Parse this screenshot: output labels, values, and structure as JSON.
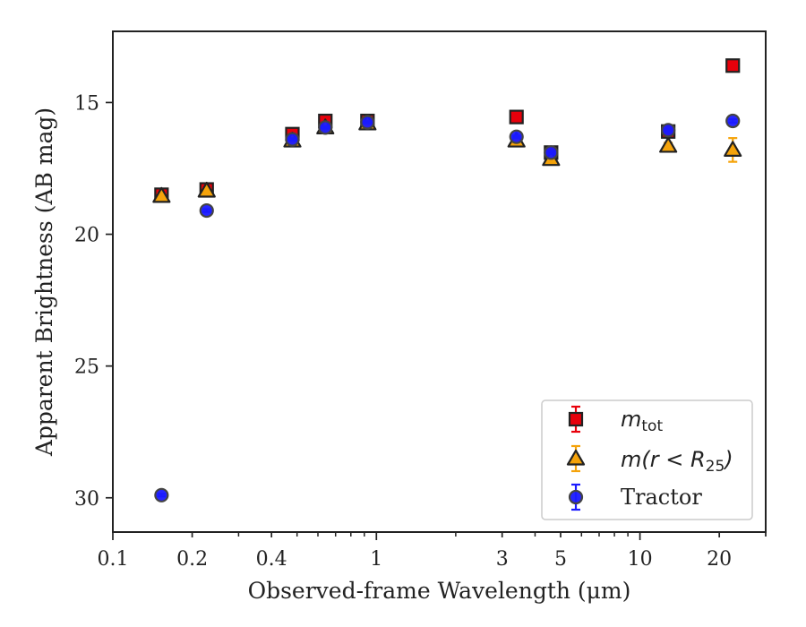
{
  "chart_data": {
    "type": "scatter",
    "xlabel": "Observed-frame Wavelength (μm)",
    "ylabel": "Apparent Brightness (AB mag)",
    "xscale": "log",
    "xlim": [
      0.1,
      30
    ],
    "ylim": [
      31.3,
      12.3
    ],
    "y_inverted": true,
    "x_ticks": [
      {
        "value": 0.1,
        "label": "0.1"
      },
      {
        "value": 0.2,
        "label": "0.2"
      },
      {
        "value": 0.4,
        "label": "0.4"
      },
      {
        "value": 1,
        "label": "1"
      },
      {
        "value": 3,
        "label": "3"
      },
      {
        "value": 5,
        "label": "5"
      },
      {
        "value": 10,
        "label": "10"
      },
      {
        "value": 20,
        "label": "20"
      }
    ],
    "y_ticks": [
      {
        "value": 15,
        "label": "15"
      },
      {
        "value": 20,
        "label": "20"
      },
      {
        "value": 25,
        "label": "25"
      },
      {
        "value": 30,
        "label": "30"
      }
    ],
    "grid": false,
    "legend": {
      "position": "bottom-right",
      "entries": [
        {
          "series": "m_tot",
          "prefix": "m",
          "sub": "tot",
          "suffix": ""
        },
        {
          "series": "m_r25",
          "prefix": "m(r < R",
          "sub": "25",
          "suffix": ")"
        },
        {
          "series": "tractor",
          "text": "Tractor"
        }
      ]
    },
    "series": [
      {
        "id": "m_tot",
        "marker": "square",
        "color": "#e8000b",
        "ecolor": "#e8000b",
        "x": [
          0.153,
          0.227,
          0.48,
          0.64,
          0.925,
          3.4,
          4.6,
          12.8,
          22.5
        ],
        "y": [
          18.5,
          18.3,
          16.2,
          15.7,
          15.7,
          15.55,
          16.9,
          16.1,
          13.6
        ],
        "err": [
          0.08,
          0.08,
          0.05,
          0.05,
          0.04,
          0.04,
          0.05,
          0.08,
          0.07
        ]
      },
      {
        "id": "m_r25",
        "marker": "triangle",
        "color": "#f5a30a",
        "ecolor": "#f5a30a",
        "x": [
          0.153,
          0.227,
          0.48,
          0.64,
          0.925,
          3.4,
          4.6,
          12.8,
          22.5
        ],
        "y": [
          18.55,
          18.35,
          16.45,
          15.95,
          15.8,
          16.45,
          17.15,
          16.65,
          16.8
        ],
        "err": [
          0.08,
          0.08,
          0.05,
          0.05,
          0.04,
          0.04,
          0.06,
          0.12,
          0.45
        ]
      },
      {
        "id": "tractor",
        "marker": "circle",
        "color": "#1a1aff",
        "ecolor": "#1a1aff",
        "x": [
          0.153,
          0.227,
          0.48,
          0.64,
          0.925,
          3.4,
          4.6,
          12.8,
          22.5
        ],
        "y": [
          29.9,
          19.1,
          16.4,
          15.95,
          15.75,
          16.3,
          16.9,
          16.05,
          15.7
        ],
        "err": [
          0.05,
          0.05,
          0.04,
          0.04,
          0.04,
          0.04,
          0.05,
          0.06,
          0.06
        ]
      }
    ]
  }
}
